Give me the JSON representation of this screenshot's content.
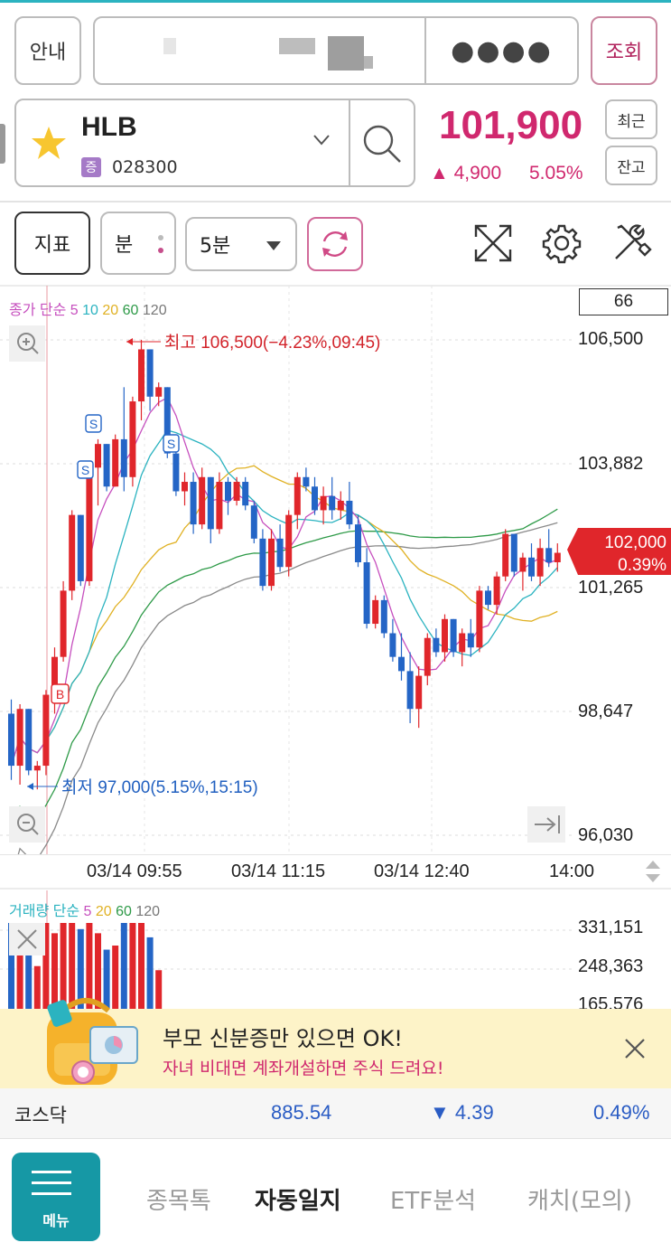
{
  "header": {
    "guide_label": "안내",
    "account_password_mask": "●●●●",
    "query_label": "조회"
  },
  "stock": {
    "name": "HLB",
    "market_badge": "증",
    "code": "028300",
    "price": "101,900",
    "change": "▲ 4,900",
    "change_pct": "5.05%",
    "recent_label": "최근",
    "balance_label": "잔고",
    "icons": [
      "star-icon",
      "chevron-down-icon",
      "search-icon"
    ]
  },
  "toolbar": {
    "indicator_label": "지표",
    "minute_label": "분",
    "interval_value": "5분",
    "icons": [
      "refresh-icon",
      "expand-icon",
      "gear-icon",
      "tools-icon"
    ]
  },
  "price_chart": {
    "ma_legend": {
      "prefix": "종가 단순",
      "periods": [
        {
          "label": "5",
          "color": "#c64fbe"
        },
        {
          "label": "10",
          "color": "#2bb3c0"
        },
        {
          "label": "20",
          "color": "#e0b123"
        },
        {
          "label": "60",
          "color": "#2e9a48"
        },
        {
          "label": "120",
          "color": "#777777"
        }
      ]
    },
    "count_box": "66",
    "y_ticks": [
      "106,500",
      "103,882",
      "101,265",
      "98,647",
      "96,030"
    ],
    "high_annotation": "최고 106,500(−4.23%,09:45)",
    "low_annotation": "최저 97,000(5.15%,15:15)",
    "current_tag_price": "102,000",
    "current_tag_pct": "0.39%",
    "x_ticks": [
      "03/14 09:55",
      "03/14 11:15",
      "03/14 12:40",
      "14:00"
    ],
    "marker_labels": {
      "sell": "S",
      "buy": "B"
    },
    "colors": {
      "up": "#e0262b",
      "down": "#2465c6",
      "tag": "#e0262b"
    }
  },
  "chart_data": {
    "type": "candlestick",
    "interval": "5분",
    "ylim": [
      96030,
      106500
    ],
    "high": 106500,
    "low": 97000,
    "current": 102000,
    "candles": [
      [
        98600,
        98900,
        97200,
        97500
      ],
      [
        97500,
        98800,
        97100,
        98700
      ],
      [
        98700,
        98700,
        97300,
        97400
      ],
      [
        97400,
        97600,
        97000,
        97500
      ],
      [
        97500,
        99100,
        97300,
        99000
      ],
      [
        99000,
        100000,
        98600,
        99800
      ],
      [
        99800,
        101400,
        99700,
        101200
      ],
      [
        101200,
        102900,
        101000,
        102800
      ],
      [
        102800,
        102800,
        101300,
        101400
      ],
      [
        101400,
        103900,
        101300,
        103800
      ],
      [
        103800,
        104400,
        103000,
        104300
      ],
      [
        104300,
        104300,
        103300,
        103400
      ],
      [
        103400,
        104500,
        103400,
        104400
      ],
      [
        104400,
        105500,
        103300,
        103600
      ],
      [
        103600,
        105300,
        103400,
        105200
      ],
      [
        105200,
        106500,
        104800,
        106300
      ],
      [
        106300,
        106300,
        105000,
        105300
      ],
      [
        105300,
        105600,
        105100,
        105500
      ],
      [
        105500,
        105500,
        104000,
        104100
      ],
      [
        104100,
        104300,
        103200,
        103300
      ],
      [
        103300,
        103700,
        103000,
        103500
      ],
      [
        103500,
        103700,
        102400,
        102600
      ],
      [
        102600,
        103800,
        102500,
        103600
      ],
      [
        103600,
        103600,
        102200,
        102500
      ],
      [
        102500,
        103700,
        102400,
        103500
      ],
      [
        103500,
        103600,
        102800,
        103100
      ],
      [
        103100,
        103600,
        103000,
        103500
      ],
      [
        103500,
        103600,
        102900,
        103000
      ],
      [
        103000,
        103100,
        102200,
        102300
      ],
      [
        102300,
        102500,
        101200,
        101300
      ],
      [
        101300,
        102500,
        101200,
        102300
      ],
      [
        102300,
        102600,
        101600,
        101700
      ],
      [
        101700,
        102900,
        101500,
        102800
      ],
      [
        102800,
        103700,
        102500,
        103600
      ],
      [
        103600,
        103800,
        103300,
        103400
      ],
      [
        103400,
        103600,
        102800,
        102900
      ],
      [
        102900,
        103400,
        102600,
        103200
      ],
      [
        103200,
        103600,
        102700,
        102900
      ],
      [
        102900,
        103300,
        102700,
        103100
      ],
      [
        103100,
        103500,
        102500,
        102600
      ],
      [
        102600,
        102800,
        101700,
        101800
      ],
      [
        101800,
        102100,
        100400,
        100500
      ],
      [
        100500,
        101100,
        100400,
        101000
      ],
      [
        101000,
        101100,
        100200,
        100300
      ],
      [
        100300,
        100600,
        99700,
        99800
      ],
      [
        99800,
        100300,
        99300,
        99500
      ],
      [
        99500,
        99900,
        98400,
        98700
      ],
      [
        98700,
        99600,
        98300,
        99400
      ],
      [
        99400,
        100300,
        99200,
        100200
      ],
      [
        100200,
        100400,
        99800,
        99900
      ],
      [
        99900,
        100700,
        99700,
        100600
      ],
      [
        100600,
        100600,
        99800,
        99900
      ],
      [
        99900,
        100400,
        99600,
        100300
      ],
      [
        100300,
        100600,
        99800,
        100000
      ],
      [
        100000,
        101300,
        99900,
        101200
      ],
      [
        101200,
        101300,
        100800,
        100900
      ],
      [
        100900,
        101600,
        100700,
        101500
      ],
      [
        101500,
        102500,
        101400,
        102400
      ],
      [
        102400,
        102400,
        101500,
        101600
      ],
      [
        101600,
        102000,
        101200,
        101900
      ],
      [
        101900,
        102200,
        101400,
        101500
      ],
      [
        101500,
        102300,
        101300,
        102100
      ],
      [
        102100,
        102500,
        101700,
        101800
      ],
      [
        101800,
        102200,
        101600,
        102000
      ]
    ]
  },
  "volume_chart": {
    "ma_legend": {
      "prefix": "거래량 단순",
      "periods": [
        {
          "label": "5",
          "color": "#c64fbe"
        },
        {
          "label": "20",
          "color": "#e0b123"
        },
        {
          "label": "60",
          "color": "#2e9a48"
        },
        {
          "label": "120",
          "color": "#777777"
        }
      ]
    },
    "y_ticks": [
      "331,151",
      "248,363",
      "165,576"
    ]
  },
  "banner": {
    "title": "부모 신분증만 있으면 OK!",
    "subtitle": "자녀 비대면 계좌개설하면 주식 드려요!"
  },
  "index_row": {
    "name": "코스닥",
    "value": "885.54",
    "change": "▼ 4.39",
    "change_pct": "0.49%"
  },
  "bottom_nav": {
    "menu_label": "메뉴",
    "items": [
      "종목톡",
      "자동일지",
      "ETF분석",
      "캐치(모의)"
    ],
    "active_index": 1
  }
}
